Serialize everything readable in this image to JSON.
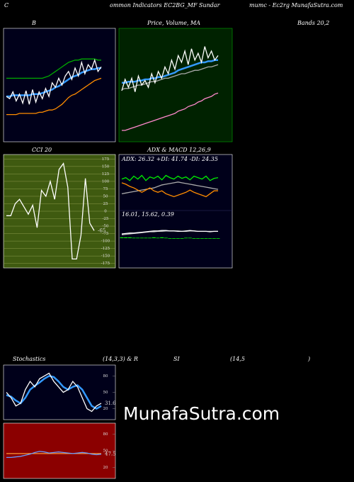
{
  "header": {
    "left": "C",
    "middle": "ommon Indicators EC2BG_MF Sundar",
    "right": "mumc - Ec2rg MunafaSutra.com",
    "bands": "Bands 20,2",
    "stoch": "Stochastics",
    "stoch_params": "(14,3,3) & R",
    "rsi": "SI",
    "rsi_params": "(14,5",
    "close": ")"
  },
  "watermark": "MunafaSutra.com",
  "chart_data": [
    {
      "type": "line",
      "title": "B",
      "ylim": [
        0,
        100
      ],
      "series": [
        {
          "color": "#00aa00",
          "values": [
            56,
            56,
            56,
            56,
            56,
            56,
            56,
            56,
            56,
            56,
            56,
            56,
            57,
            58,
            60,
            62,
            64,
            66,
            68,
            70,
            71,
            72,
            72,
            73,
            73,
            73,
            73,
            73,
            72,
            72
          ]
        },
        {
          "color": "#ff8c00",
          "values": [
            24,
            24,
            24,
            24,
            25,
            25,
            25,
            25,
            25,
            25,
            26,
            26,
            27,
            28,
            28,
            29,
            31,
            33,
            36,
            39,
            41,
            42,
            44,
            46,
            48,
            50,
            52,
            54,
            55,
            56
          ]
        },
        {
          "color": "#3399ff",
          "values": [
            40,
            40,
            41,
            41,
            41,
            41,
            41,
            41,
            42,
            42,
            42,
            43,
            44,
            45,
            46,
            48,
            49,
            51,
            53,
            55,
            57,
            58,
            59,
            61,
            62,
            63,
            64,
            64,
            65,
            65
          ]
        },
        {
          "color": "#ffffff",
          "values": [
            40,
            38,
            44,
            36,
            42,
            34,
            45,
            33,
            46,
            35,
            44,
            38,
            47,
            40,
            52,
            48,
            56,
            50,
            58,
            62,
            55,
            65,
            58,
            70,
            60,
            68,
            64,
            72,
            62,
            66
          ]
        }
      ]
    },
    {
      "type": "line",
      "title": "Price, Volume, MA",
      "ylim": [
        0,
        100
      ],
      "series": [
        {
          "color": "#ff88cc",
          "values": [
            10,
            10,
            11,
            12,
            13,
            14,
            15,
            16,
            17,
            18,
            19,
            20,
            21,
            22,
            23,
            24,
            25,
            27,
            28,
            29,
            31,
            32,
            33,
            35,
            36,
            38,
            39,
            40,
            42,
            43
          ]
        },
        {
          "color": "#aaaaaa",
          "values": [
            46,
            47,
            47,
            48,
            49,
            50,
            50,
            51,
            52,
            53,
            53,
            54,
            55,
            56,
            56,
            57,
            58,
            59,
            60,
            60,
            61,
            62,
            63,
            63,
            64,
            65,
            66,
            66,
            67,
            68
          ]
        },
        {
          "color": "#3399ff",
          "values": [
            52,
            52,
            53,
            53,
            53,
            54,
            54,
            55,
            55,
            56,
            56,
            57,
            57,
            58,
            59,
            60,
            61,
            63,
            64,
            65,
            66,
            67,
            68,
            69,
            70,
            70,
            71,
            71,
            72,
            72
          ]
        },
        {
          "color": "#ffffff",
          "values": [
            45,
            55,
            48,
            56,
            44,
            58,
            50,
            54,
            48,
            60,
            52,
            62,
            56,
            66,
            60,
            72,
            64,
            76,
            70,
            80,
            68,
            82,
            72,
            78,
            70,
            84,
            74,
            80,
            72,
            76
          ]
        }
      ]
    },
    {
      "type": "line",
      "title": "CCI 20",
      "ylim": [
        -190,
        190
      ],
      "yticks": [
        175,
        150,
        125,
        100,
        75,
        50,
        25,
        0,
        -25,
        -50,
        -75,
        -100,
        -125,
        -150,
        -175
      ],
      "grid": true,
      "series": [
        {
          "color": "#ffffff",
          "values": [
            -15,
            -15,
            25,
            40,
            15,
            -10,
            20,
            -55,
            70,
            50,
            100,
            40,
            140,
            160,
            80,
            -160,
            -160,
            -80,
            110,
            -40,
            -65
          ],
          "value_labels": [
            "-65"
          ]
        }
      ]
    },
    {
      "type": "line",
      "title": "ADX  & MACD 12,26,9",
      "annotation": "ADX: 26.32  +DI: 41.74  -DI: 24.35",
      "ylim": [
        0,
        60
      ],
      "series": [
        {
          "color": "#aaaaaa",
          "values": [
            20,
            21,
            22,
            23,
            24,
            25,
            26,
            27,
            28,
            30,
            32,
            33,
            34,
            35,
            36,
            35,
            34,
            33,
            32,
            31,
            30,
            29,
            28,
            27,
            26
          ]
        },
        {
          "color": "#ff8c00",
          "values": [
            35,
            33,
            30,
            28,
            25,
            22,
            25,
            28,
            24,
            22,
            24,
            20,
            18,
            16,
            18,
            20,
            22,
            25,
            22,
            20,
            18,
            16,
            20,
            24,
            24
          ]
        },
        {
          "color": "#00ee00",
          "values": [
            40,
            42,
            38,
            44,
            40,
            45,
            38,
            43,
            41,
            44,
            39,
            45,
            42,
            40,
            44,
            41,
            43,
            39,
            44,
            42,
            40,
            44,
            38,
            41,
            42
          ]
        }
      ]
    },
    {
      "type": "line",
      "annotation": "16.01, 15.62, 0.39",
      "ylim": [
        -20,
        40
      ],
      "series": [
        {
          "color": "#00ee00",
          "style": "bar",
          "values": [
            2,
            2,
            2,
            1,
            1,
            1,
            1,
            1,
            2,
            1,
            2,
            1,
            0,
            0,
            -1,
            0,
            1,
            1,
            0,
            0,
            0,
            0,
            -1,
            0,
            0
          ]
        },
        {
          "color": "#bbbbbb",
          "values": [
            8,
            9,
            10,
            11,
            12,
            13,
            14,
            15,
            15,
            16,
            16,
            17,
            17,
            17,
            17,
            16,
            16,
            17,
            17,
            16,
            16,
            16,
            16,
            16,
            16
          ]
        },
        {
          "color": "#ffffff",
          "values": [
            10,
            11,
            12,
            12,
            13,
            14,
            15,
            16,
            17,
            17,
            18,
            18,
            17,
            17,
            16,
            16,
            17,
            18,
            17,
            16,
            16,
            16,
            15,
            16,
            16
          ]
        }
      ]
    },
    {
      "type": "line",
      "ylim": [
        0,
        100
      ],
      "yticks": [
        80,
        50,
        20
      ],
      "series": [
        {
          "color": "#3399ff",
          "values": [
            45,
            42,
            35,
            30,
            40,
            55,
            62,
            68,
            75,
            80,
            78,
            70,
            60,
            55,
            60,
            63,
            55,
            40,
            25,
            20,
            25
          ]
        },
        {
          "color": "#ffffff",
          "values": [
            50,
            40,
            25,
            30,
            55,
            70,
            60,
            75,
            80,
            85,
            70,
            60,
            50,
            55,
            70,
            60,
            40,
            20,
            15,
            25,
            30
          ],
          "value_labels": [
            "31.6"
          ]
        }
      ]
    },
    {
      "type": "line",
      "ylim": [
        0,
        100
      ],
      "yticks": [
        80,
        50,
        20
      ],
      "series": [
        {
          "color": "#ff9933",
          "values": [
            45,
            45,
            45,
            45,
            45,
            45,
            45,
            45,
            45,
            45,
            45,
            45,
            45,
            45,
            45,
            45,
            45,
            45,
            45,
            45,
            45
          ]
        },
        {
          "color": "#6699ff",
          "values": [
            38,
            38,
            39,
            40,
            42,
            44,
            47,
            49,
            48,
            46,
            47,
            48,
            47,
            46,
            45,
            46,
            47,
            46,
            44,
            43,
            44
          ],
          "value_labels": [
            "47.5"
          ]
        }
      ]
    }
  ]
}
